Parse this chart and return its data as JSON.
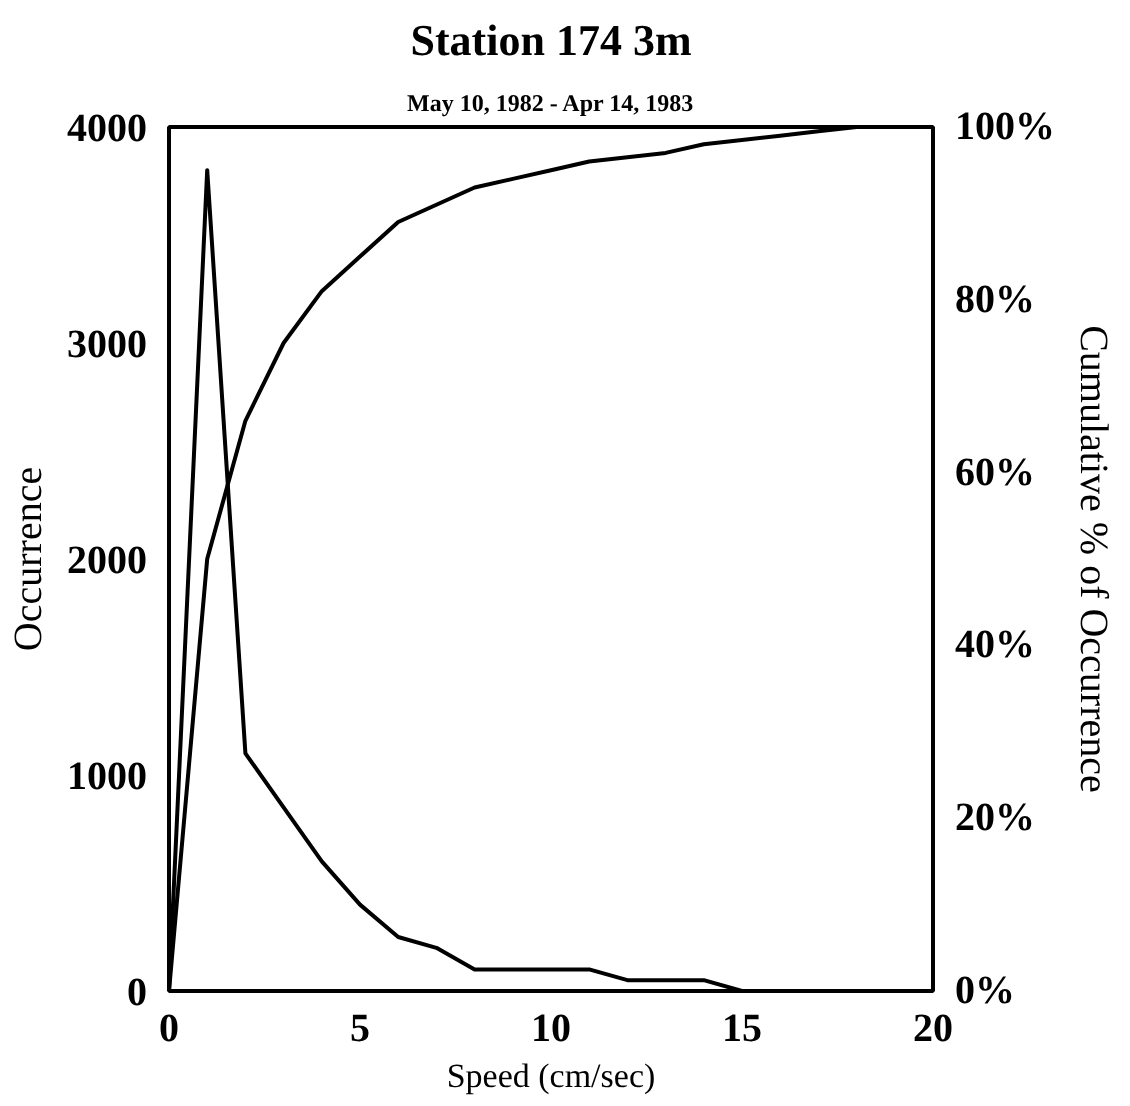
{
  "chart_data": {
    "type": "line",
    "title": "Station 174 3m",
    "subtitle": "May 10, 1982 - Apr 14, 1983",
    "xlabel": "Speed (cm/sec)",
    "ylabel": "Occurrence",
    "y2label": "Cumulative % of Occurrence",
    "x": [
      0,
      1,
      2,
      3,
      4,
      5,
      6,
      7,
      8,
      9,
      10,
      11,
      12,
      13,
      14,
      15,
      16,
      17,
      18,
      19,
      20
    ],
    "series": [
      {
        "color": "#000000",
        "values": [
          0,
          3800,
          1100,
          850,
          600,
          400,
          250,
          200,
          100,
          100,
          100,
          100,
          50,
          50,
          50,
          0,
          0,
          0,
          0,
          0,
          0
        ]
      },
      {
        "color": "#000000",
        "axis": "y2",
        "values": [
          0,
          50,
          66,
          75,
          81,
          85,
          89,
          91,
          93,
          94,
          95,
          96,
          96.5,
          97,
          98,
          98.5,
          99,
          99.5,
          100,
          100,
          100
        ]
      }
    ],
    "xlim": [
      0,
      20
    ],
    "xticks": [
      0,
      5,
      10,
      15,
      20
    ],
    "ylim": [
      0,
      4000
    ],
    "yticks": [
      0,
      1000,
      2000,
      3000,
      4000
    ],
    "y2lim": [
      0,
      100
    ],
    "y2ticks": [
      {
        "value": 0,
        "label": "0%"
      },
      {
        "value": 20,
        "label": "20%"
      },
      {
        "value": 40,
        "label": "40%"
      },
      {
        "value": 60,
        "label": "60%"
      },
      {
        "value": 80,
        "label": "80%"
      },
      {
        "value": 100,
        "label": "100%"
      }
    ],
    "marker": "none",
    "line_style": "solid"
  }
}
